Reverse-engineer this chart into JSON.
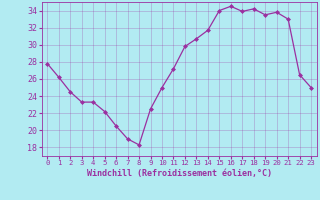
{
  "x": [
    0,
    1,
    2,
    3,
    4,
    5,
    6,
    7,
    8,
    9,
    10,
    11,
    12,
    13,
    14,
    15,
    16,
    17,
    18,
    19,
    20,
    21,
    22,
    23
  ],
  "y": [
    27.8,
    26.2,
    24.5,
    23.3,
    23.3,
    22.2,
    20.5,
    19.0,
    18.3,
    22.5,
    25.0,
    27.2,
    29.8,
    30.7,
    31.7,
    34.0,
    34.5,
    33.9,
    34.2,
    33.5,
    33.8,
    33.0,
    26.5,
    25.0
  ],
  "line_color": "#9b30a0",
  "marker": "D",
  "marker_size": 2,
  "bg_color": "#b2ebf2",
  "grid_color": "#9b30a0",
  "xlabel": "Windchill (Refroidissement éolien,°C)",
  "xlabel_color": "#9b30a0",
  "xtick_labels": [
    "0",
    "1",
    "2",
    "3",
    "4",
    "5",
    "6",
    "7",
    "8",
    "9",
    "10",
    "11",
    "12",
    "13",
    "14",
    "15",
    "16",
    "17",
    "18",
    "19",
    "20",
    "21",
    "22",
    "23"
  ],
  "ylim": [
    17,
    35
  ],
  "yticks": [
    18,
    20,
    22,
    24,
    26,
    28,
    30,
    32,
    34
  ],
  "xlim": [
    -0.5,
    23.5
  ],
  "linewidth": 0.9
}
